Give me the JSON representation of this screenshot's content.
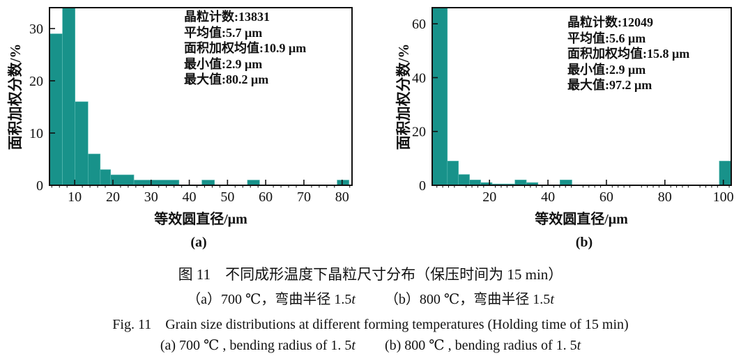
{
  "chart_data": [
    {
      "type": "bar",
      "panel": "(a)",
      "xlabel": "等效圆直径/μm",
      "ylabel": "面积加权分数/%",
      "x_ticks": [
        10,
        20,
        30,
        40,
        50,
        60,
        70,
        80
      ],
      "y_ticks": [
        0,
        10,
        20,
        30
      ],
      "x_range": [
        3.4,
        82.6
      ],
      "y_range": [
        0,
        34
      ],
      "minor_tick_step": 2,
      "grid": false,
      "bar_color": "#18928A",
      "annotation": [
        "晶粒计数:13831",
        "平均值:5.7 μm",
        "面积加权均值:10.9 μm",
        "最小值:2.9 μm",
        "最大值:80.2 μm"
      ],
      "stats": {
        "grain_count": 13831,
        "mean_um": 5.7,
        "area_weighted_mean_um": 10.9,
        "min_um": 2.9,
        "max_um": 80.2
      },
      "bins": [
        {
          "from": 3.4,
          "to": 6.8,
          "value": 29
        },
        {
          "from": 6.8,
          "to": 10.1,
          "value": 34
        },
        {
          "from": 10.1,
          "to": 13.5,
          "value": 16
        },
        {
          "from": 13.5,
          "to": 16.7,
          "value": 6
        },
        {
          "from": 16.7,
          "to": 19.4,
          "value": 3
        },
        {
          "from": 19.4,
          "to": 25.5,
          "value": 2
        },
        {
          "from": 25.5,
          "to": 37.3,
          "value": 1
        },
        {
          "from": 43.3,
          "to": 46.6,
          "value": 1
        },
        {
          "from": 55.2,
          "to": 58.4,
          "value": 1
        },
        {
          "from": 78.7,
          "to": 81.8,
          "value": 1
        }
      ]
    },
    {
      "type": "bar",
      "panel": "(b)",
      "xlabel": "等效圆直径/μm",
      "ylabel": "面积加权分数/%",
      "x_ticks": [
        20,
        40,
        60,
        80,
        100
      ],
      "y_ticks": [
        0,
        20,
        40,
        60
      ],
      "x_range": [
        0.4,
        102.7
      ],
      "y_range": [
        0,
        66
      ],
      "minor_tick_step": 2,
      "grid": false,
      "bar_color": "#18928A",
      "annotation": [
        "晶粒计数:12049",
        "平均值:5.6 μm",
        "面积加权均值:15.8 μm",
        "最小值:2.9 μm",
        "最大值:97.2 μm"
      ],
      "stats": {
        "grain_count": 12049,
        "mean_um": 5.6,
        "area_weighted_mean_um": 15.8,
        "min_um": 2.9,
        "max_um": 97.2
      },
      "bins": [
        {
          "from": 0.4,
          "to": 5.6,
          "value": 66
        },
        {
          "from": 5.6,
          "to": 9.4,
          "value": 9
        },
        {
          "from": 9.4,
          "to": 13.2,
          "value": 4
        },
        {
          "from": 13.2,
          "to": 17.0,
          "value": 2
        },
        {
          "from": 17.0,
          "to": 20.9,
          "value": 1
        },
        {
          "from": 20.9,
          "to": 28.7,
          "value": 0.5
        },
        {
          "from": 28.7,
          "to": 32.6,
          "value": 2
        },
        {
          "from": 32.6,
          "to": 36.6,
          "value": 1
        },
        {
          "from": 44.1,
          "to": 48.2,
          "value": 2
        },
        {
          "from": 98.6,
          "to": 102.7,
          "value": 9
        }
      ]
    }
  ],
  "caption": {
    "line1": "图 11　不同成形温度下晶粒尺寸分布（保压时间为 15 min）",
    "line2a_text": "（a）700 ℃，弯曲半径 1.5",
    "line2a_var": "t",
    "line2b_text": "（b）800 ℃，弯曲半径 1.5",
    "line2b_var": "t",
    "line3": "Fig. 11　Grain size distributions at different forming temperatures (Holding time of 15 min)",
    "line4a_text": "(a) 700 ℃ , bending radius of 1. 5",
    "line4a_var": "t",
    "line4b_text": "(b) 800 ℃ , bending radius of 1. 5",
    "line4b_var": "t"
  }
}
